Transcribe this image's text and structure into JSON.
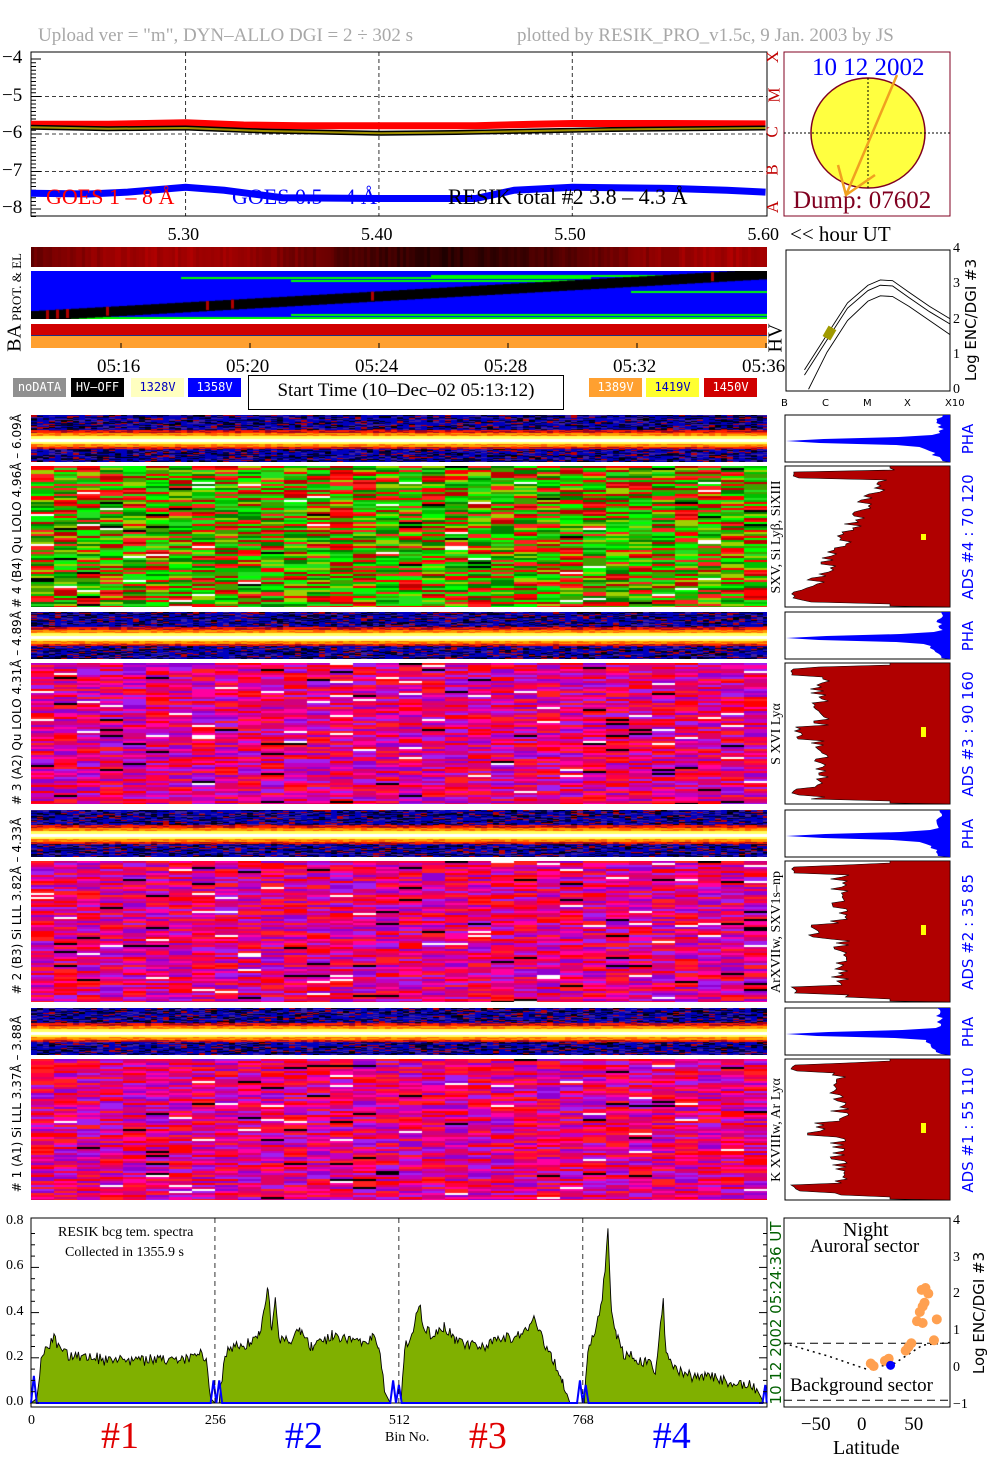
{
  "header": {
    "left": "Upload ver = \"m\", DYN–ALLO DGI =   2 ÷ 302 s",
    "right": "plotted by RESIK_PRO_v1.5c, 9 Jan. 2003 by JS"
  },
  "colors": {
    "goes_long": "#ff0000",
    "goes_short": "#0000ff",
    "resik_total": "#000000",
    "resik_total_fill": "#a09000",
    "spectrum_fill": "#80b000",
    "background_line": "#0000ff",
    "histogram_red": "#b00000",
    "histogram_blue": "#0000ff",
    "sun": "#ffff40",
    "sun_outline": "#800020",
    "flare_arrow": "#f0a020",
    "orange_points": "#ffa050"
  },
  "chart_data": [
    {
      "id": "goes_lightcurve",
      "type": "line",
      "xlabel": "<< hour UT",
      "xticks": [
        "5.30",
        "5.40",
        "5.50",
        "5.60"
      ],
      "xlim": [
        5.22,
        5.6
      ],
      "yticks": [
        "−4",
        "−5",
        "−6",
        "−7",
        "−8"
      ],
      "ylim": [
        -8.2,
        -3.85
      ],
      "grid": true,
      "right_axis_labels": [
        "X",
        "M",
        "C",
        "B",
        "A"
      ],
      "series": [
        {
          "name": "GOES 1 – 8 Å",
          "x": [
            5.22,
            5.26,
            5.3,
            5.33,
            5.36,
            5.4,
            5.45,
            5.48,
            5.5,
            5.55,
            5.6
          ],
          "y": [
            -5.74,
            -5.74,
            -5.7,
            -5.76,
            -5.78,
            -5.78,
            -5.78,
            -5.74,
            -5.72,
            -5.72,
            -5.73
          ]
        },
        {
          "name": "GOES 0.5 – 4 Å",
          "x": [
            5.22,
            5.25,
            5.27,
            5.3,
            5.32,
            5.35,
            5.4,
            5.45,
            5.47,
            5.5,
            5.55,
            5.58,
            5.6
          ],
          "y": [
            -7.58,
            -7.6,
            -7.55,
            -7.42,
            -7.5,
            -7.7,
            -7.72,
            -7.72,
            -7.5,
            -7.42,
            -7.45,
            -7.5,
            -7.55
          ]
        },
        {
          "name": "RESIK total #2  3.8 – 4.3 Å",
          "x": [
            5.22,
            5.26,
            5.3,
            5.34,
            5.38,
            5.4,
            5.44,
            5.48,
            5.52,
            5.56,
            5.6
          ],
          "y": [
            -5.82,
            -5.86,
            -5.84,
            -5.92,
            -5.96,
            -5.98,
            -5.96,
            -5.92,
            -5.88,
            -5.86,
            -5.84
          ]
        }
      ]
    },
    {
      "id": "flux_enc_curves",
      "type": "line",
      "xticks": [
        "B",
        "C",
        "M",
        "X",
        "X10"
      ],
      "yticks": [
        "4",
        "3",
        "2",
        "1",
        "0"
      ],
      "ylabel": "Log ENC/DGI #3",
      "xlim": [
        -7,
        -3
      ],
      "ylim": [
        0,
        4
      ],
      "series": [
        {
          "x": [
            -6.55,
            -6,
            -5.5,
            -5,
            -4.7,
            -4.4,
            -4,
            -3.5,
            -3
          ],
          "y": [
            0.6,
            1.6,
            2.5,
            3.0,
            3.15,
            3.13,
            2.8,
            2.4,
            2.05
          ]
        },
        {
          "x": [
            -6.55,
            -6,
            -5.5,
            -5,
            -4.7,
            -4.4,
            -4,
            -3.5,
            -3
          ],
          "y": [
            0.45,
            1.45,
            2.35,
            2.85,
            3.0,
            2.98,
            2.65,
            2.25,
            1.9
          ]
        },
        {
          "x": [
            -6.45,
            -6,
            -5.5,
            -5,
            -4.7,
            -4.4,
            -4,
            -3.5,
            -3
          ],
          "y": [
            0.05,
            1.1,
            2.0,
            2.55,
            2.7,
            2.68,
            2.4,
            2.0,
            1.6
          ]
        }
      ],
      "marker": {
        "x": -5.95,
        "y": 1.65
      }
    },
    {
      "id": "resik_spectrum",
      "type": "area",
      "xlabel": "Bin No.",
      "xticks": [
        "0",
        "256",
        "512",
        "768"
      ],
      "xlim": [
        0,
        1024
      ],
      "yticks": [
        "0.8",
        "0.6",
        "0.4",
        "0.2",
        "0.0"
      ],
      "ylim": [
        0,
        0.8
      ],
      "annotation": [
        "RESIK bcg tem. spectra",
        "Collected in  1355.9 s"
      ],
      "side_label": "10 12 2002    05:24:36 UT",
      "channel_labels": [
        "#1",
        "#2",
        "#3",
        "#4"
      ],
      "channel_colors": [
        "#e00000",
        "#0000ff",
        "#e00000",
        "#0000ff"
      ],
      "points": [
        [
          0,
          0
        ],
        [
          8,
          0.02
        ],
        [
          14,
          0.2
        ],
        [
          24,
          0.25
        ],
        [
          32,
          0.29
        ],
        [
          40,
          0.23
        ],
        [
          60,
          0.2
        ],
        [
          80,
          0.21
        ],
        [
          100,
          0.19
        ],
        [
          120,
          0.2
        ],
        [
          140,
          0.18
        ],
        [
          160,
          0.19
        ],
        [
          180,
          0.2
        ],
        [
          200,
          0.19
        ],
        [
          220,
          0.2
        ],
        [
          236,
          0.23
        ],
        [
          244,
          0.18
        ],
        [
          250,
          0.02
        ],
        [
          256,
          0
        ],
        [
          262,
          0
        ],
        [
          268,
          0.18
        ],
        [
          276,
          0.24
        ],
        [
          290,
          0.25
        ],
        [
          305,
          0.27
        ],
        [
          318,
          0.3
        ],
        [
          325,
          0.4
        ],
        [
          330,
          0.52
        ],
        [
          335,
          0.3
        ],
        [
          340,
          0.45
        ],
        [
          345,
          0.28
        ],
        [
          360,
          0.27
        ],
        [
          375,
          0.32
        ],
        [
          390,
          0.25
        ],
        [
          405,
          0.27
        ],
        [
          420,
          0.3
        ],
        [
          440,
          0.28
        ],
        [
          460,
          0.26
        ],
        [
          475,
          0.3
        ],
        [
          484,
          0.25
        ],
        [
          492,
          0.05
        ],
        [
          500,
          0
        ],
        [
          515,
          0
        ],
        [
          520,
          0.25
        ],
        [
          530,
          0.3
        ],
        [
          540,
          0.44
        ],
        [
          548,
          0.32
        ],
        [
          560,
          0.3
        ],
        [
          575,
          0.34
        ],
        [
          590,
          0.28
        ],
        [
          610,
          0.26
        ],
        [
          630,
          0.25
        ],
        [
          650,
          0.3
        ],
        [
          670,
          0.28
        ],
        [
          690,
          0.32
        ],
        [
          700,
          0.37
        ],
        [
          710,
          0.3
        ],
        [
          725,
          0.2
        ],
        [
          740,
          0.1
        ],
        [
          750,
          0
        ],
        [
          770,
          0
        ],
        [
          775,
          0.25
        ],
        [
          785,
          0.3
        ],
        [
          795,
          0.45
        ],
        [
          803,
          0.75
        ],
        [
          808,
          0.4
        ],
        [
          815,
          0.3
        ],
        [
          825,
          0.22
        ],
        [
          840,
          0.2
        ],
        [
          855,
          0.18
        ],
        [
          870,
          0.15
        ],
        [
          880,
          0.45
        ],
        [
          884,
          0.2
        ],
        [
          900,
          0.15
        ],
        [
          920,
          0.12
        ],
        [
          940,
          0.12
        ],
        [
          960,
          0.1
        ],
        [
          980,
          0.09
        ],
        [
          1000,
          0.08
        ],
        [
          1012,
          0.05
        ],
        [
          1020,
          0
        ],
        [
          1024,
          0
        ]
      ],
      "background": [
        [
          0,
          0
        ],
        [
          4,
          0.12
        ],
        [
          8,
          0
        ],
        [
          250,
          0
        ],
        [
          254,
          0.1
        ],
        [
          258,
          0
        ],
        [
          262,
          0.1
        ],
        [
          266,
          0
        ],
        [
          500,
          0
        ],
        [
          504,
          0.1
        ],
        [
          508,
          0
        ],
        [
          512,
          0.08
        ],
        [
          516,
          0
        ],
        [
          760,
          0
        ],
        [
          764,
          0.1
        ],
        [
          768,
          0
        ],
        [
          772,
          0.08
        ],
        [
          776,
          0
        ],
        [
          1018,
          0
        ],
        [
          1022,
          0.08
        ],
        [
          1024,
          0
        ]
      ]
    },
    {
      "id": "latitude_scatter",
      "type": "scatter",
      "xlabel": "Latitude",
      "xticks": [
        "−50",
        "0",
        "50"
      ],
      "xlim": [
        -87,
        89
      ],
      "yticks": [
        "4",
        "3",
        "2",
        "1",
        "0",
        "−1"
      ],
      "ylim": [
        -1,
        4
      ],
      "ylabel": "Log ENC/DGI #3",
      "top_text": [
        "Night",
        "Auroral sector"
      ],
      "bottom_text": "Background sector",
      "thresholds": [
        0.7,
        -0.85
      ],
      "orange": [
        [
          5,
          0.15
        ],
        [
          8,
          0.08
        ],
        [
          20,
          0.22
        ],
        [
          24,
          0.28
        ],
        [
          42,
          0.5
        ],
        [
          45,
          0.6
        ],
        [
          48,
          0.7
        ],
        [
          54,
          1.3
        ],
        [
          57,
          1.55
        ],
        [
          60,
          1.7
        ],
        [
          62,
          1.8
        ],
        [
          63,
          2.2
        ],
        [
          66,
          2.05
        ],
        [
          59,
          2.15
        ],
        [
          60,
          1.25
        ],
        [
          75,
          1.35
        ],
        [
          72,
          0.78
        ]
      ],
      "blue": [
        [
          26,
          0.1
        ]
      ]
    }
  ],
  "sun_panel": {
    "date": "10 12 2002",
    "dump": "Dump: 07602"
  },
  "time_axis": {
    "ticks": [
      "05:16",
      "05:20",
      "05:24",
      "05:28",
      "05:32",
      "05:36"
    ]
  },
  "status_panel": {
    "label_top": "PROT. & EL",
    "label_ba": "BA",
    "label_hv": "HV"
  },
  "legend": {
    "items": [
      {
        "label": "noDATA",
        "bg": "#909090",
        "fg": "#ffffff"
      },
      {
        "label": "HV–OFF",
        "bg": "#000000",
        "fg": "#ffffff"
      },
      {
        "label": "1328V",
        "bg": "#ffffc0",
        "fg": "#0000c0"
      },
      {
        "label": "1358V",
        "bg": "#0000ff",
        "fg": "#ffffff"
      },
      {
        "label": "1389V",
        "bg": "#ffa030",
        "fg": "#ffffff"
      },
      {
        "label": "1419V",
        "bg": "#ffff30",
        "fg": "#0000c0"
      },
      {
        "label": "1450V",
        "bg": "#d00000",
        "fg": "#ffffff"
      }
    ],
    "start_time": "Start Time (10–Dec–02 05:13:12)"
  },
  "channels": [
    {
      "label": "# 4 (B4) Qu LOLO 4.96Å – 6.09Å",
      "lines": "SXV, Si Lyβ, SiXIII",
      "ads": "ADS #4 :   70 120",
      "pha": "PHA",
      "palette": "green"
    },
    {
      "label": "# 3 (A2) Qu LOLO 4.31Å – 4.89Å",
      "lines": "S XVI Lyα",
      "ads": "ADS #3 :   90 160",
      "pha": "PHA",
      "palette": "magenta"
    },
    {
      "label": "# 2 (B3) Si LLL 3.82Å – 4.33Å",
      "lines": "ArXVIIw, SXV1s–np",
      "ads": "ADS #2 :   35  85",
      "pha": "PHA",
      "palette": "magenta"
    },
    {
      "label": "# 1 (A1) Si LLL 3.37Å – 3.88Å",
      "lines": "K XVIIIw, Ar Lyα",
      "ads": "ADS #1 :   55 110",
      "pha": "PHA",
      "palette": "magenta"
    }
  ]
}
